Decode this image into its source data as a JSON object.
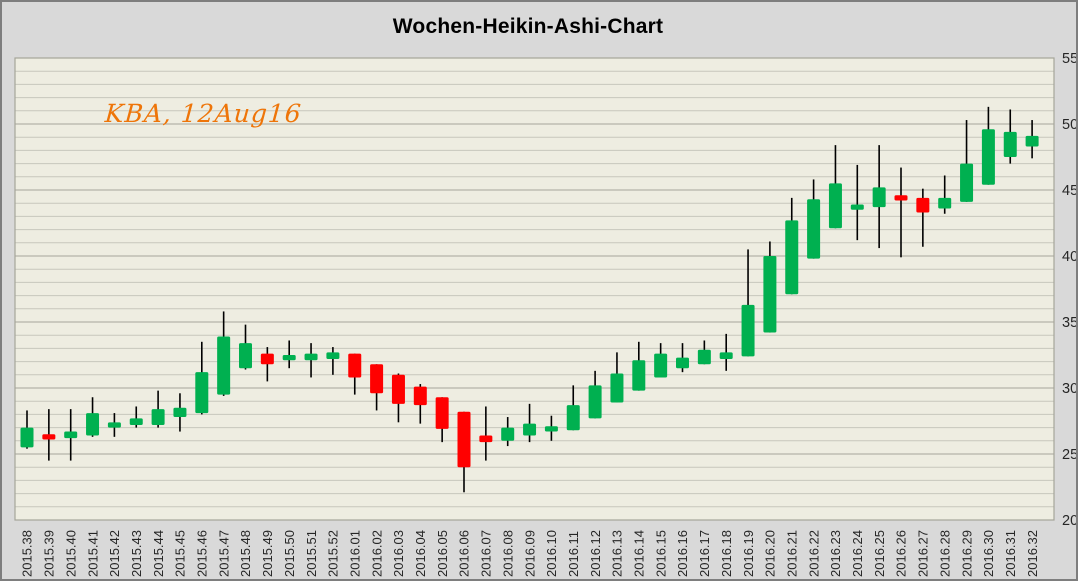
{
  "window": {
    "title": "Wochen-Heikin-Ashi-Chart"
  },
  "chart_data": {
    "type": "candlestick",
    "variant": "weekly-heikin-ashi",
    "title": "Wochen-Heikin-Ashi-Chart",
    "annotation": "KBA, 12Aug16",
    "legend": "none",
    "grid": "horizontal-only",
    "y_axis": {
      "position": "right",
      "min": 20,
      "max": 55,
      "tick_step": 5,
      "minor_grid_step": 1,
      "ticks": [
        55,
        50,
        45,
        40,
        35,
        30,
        25,
        20
      ]
    },
    "x_axis": {
      "label_rotation": -90
    },
    "colors": {
      "up": "#00b050",
      "down": "#ff0000",
      "wick": "#000000",
      "plot_bg": "#eeede1",
      "outer_bg": "#d9d9d9",
      "grid_minor": "#c7c7bc",
      "grid_major": "#a5a59a",
      "annotation": "#ee7509",
      "axis_text": "#262626",
      "title_text": "#000000"
    },
    "candles": [
      {
        "label": "2015.38",
        "open": 25.5,
        "high": 28.3,
        "low": 25.4,
        "close": 27.0
      },
      {
        "label": "2015.39",
        "open": 26.5,
        "high": 28.4,
        "low": 24.5,
        "close": 26.1
      },
      {
        "label": "2015.40",
        "open": 26.2,
        "high": 28.4,
        "low": 24.5,
        "close": 26.7
      },
      {
        "label": "2015.41",
        "open": 26.4,
        "high": 29.3,
        "low": 26.3,
        "close": 28.1
      },
      {
        "label": "2015.42",
        "open": 27.0,
        "high": 28.1,
        "low": 26.3,
        "close": 27.4
      },
      {
        "label": "2015.43",
        "open": 27.2,
        "high": 28.6,
        "low": 27.0,
        "close": 27.7
      },
      {
        "label": "2015.44",
        "open": 27.2,
        "high": 29.8,
        "low": 27.0,
        "close": 28.4
      },
      {
        "label": "2015.45",
        "open": 27.8,
        "high": 29.6,
        "low": 26.7,
        "close": 28.5
      },
      {
        "label": "2015.46",
        "open": 28.1,
        "high": 33.5,
        "low": 28.0,
        "close": 31.2
      },
      {
        "label": "2015.47",
        "open": 29.5,
        "high": 35.8,
        "low": 29.4,
        "close": 33.9
      },
      {
        "label": "2015.48",
        "open": 31.5,
        "high": 34.8,
        "low": 31.4,
        "close": 33.4
      },
      {
        "label": "2015.49",
        "open": 32.6,
        "high": 33.1,
        "low": 30.5,
        "close": 31.8
      },
      {
        "label": "2015.50",
        "open": 32.1,
        "high": 33.6,
        "low": 31.5,
        "close": 32.5
      },
      {
        "label": "2015.51",
        "open": 32.1,
        "high": 33.4,
        "low": 30.8,
        "close": 32.6
      },
      {
        "label": "2015.52",
        "open": 32.2,
        "high": 33.1,
        "low": 31.0,
        "close": 32.7
      },
      {
        "label": "2016.01",
        "open": 32.6,
        "high": 32.6,
        "low": 29.5,
        "close": 30.8
      },
      {
        "label": "2016.02",
        "open": 31.8,
        "high": 31.8,
        "low": 28.3,
        "close": 29.6
      },
      {
        "label": "2016.03",
        "open": 31.0,
        "high": 31.1,
        "low": 27.4,
        "close": 28.8
      },
      {
        "label": "2016.04",
        "open": 30.1,
        "high": 30.3,
        "low": 27.3,
        "close": 28.7
      },
      {
        "label": "2016.05",
        "open": 29.3,
        "high": 29.3,
        "low": 25.9,
        "close": 26.9
      },
      {
        "label": "2016.06",
        "open": 28.2,
        "high": 28.2,
        "low": 22.1,
        "close": 24.0
      },
      {
        "label": "2016.07",
        "open": 26.4,
        "high": 28.6,
        "low": 24.5,
        "close": 25.9
      },
      {
        "label": "2016.08",
        "open": 26.0,
        "high": 27.8,
        "low": 25.6,
        "close": 27.0
      },
      {
        "label": "2016.09",
        "open": 26.4,
        "high": 28.8,
        "low": 25.9,
        "close": 27.3
      },
      {
        "label": "2016.10",
        "open": 26.7,
        "high": 27.9,
        "low": 26.0,
        "close": 27.1
      },
      {
        "label": "2016.11",
        "open": 26.8,
        "high": 30.2,
        "low": 26.8,
        "close": 28.7
      },
      {
        "label": "2016.12",
        "open": 27.7,
        "high": 31.3,
        "low": 27.7,
        "close": 30.2
      },
      {
        "label": "2016.13",
        "open": 28.9,
        "high": 32.7,
        "low": 28.9,
        "close": 31.1
      },
      {
        "label": "2016.14",
        "open": 29.8,
        "high": 33.5,
        "low": 29.8,
        "close": 32.1
      },
      {
        "label": "2016.15",
        "open": 30.8,
        "high": 33.4,
        "low": 30.8,
        "close": 32.6
      },
      {
        "label": "2016.16",
        "open": 31.5,
        "high": 33.4,
        "low": 31.2,
        "close": 32.3
      },
      {
        "label": "2016.17",
        "open": 31.8,
        "high": 33.6,
        "low": 31.8,
        "close": 32.9
      },
      {
        "label": "2016.18",
        "open": 32.2,
        "high": 34.1,
        "low": 31.3,
        "close": 32.7
      },
      {
        "label": "2016.19",
        "open": 32.4,
        "high": 40.5,
        "low": 32.4,
        "close": 36.3
      },
      {
        "label": "2016.20",
        "open": 34.2,
        "high": 41.1,
        "low": 34.2,
        "close": 40.0
      },
      {
        "label": "2016.21",
        "open": 37.1,
        "high": 44.4,
        "low": 37.1,
        "close": 42.7
      },
      {
        "label": "2016.22",
        "open": 39.8,
        "high": 45.8,
        "low": 39.8,
        "close": 44.3
      },
      {
        "label": "2016.23",
        "open": 42.1,
        "high": 48.4,
        "low": 42.1,
        "close": 45.5
      },
      {
        "label": "2016.24",
        "open": 43.5,
        "high": 46.9,
        "low": 41.2,
        "close": 43.9
      },
      {
        "label": "2016.25",
        "open": 43.7,
        "high": 48.4,
        "low": 40.6,
        "close": 45.2
      },
      {
        "label": "2016.26",
        "open": 44.6,
        "high": 46.7,
        "low": 39.9,
        "close": 44.2
      },
      {
        "label": "2016.27",
        "open": 44.4,
        "high": 45.1,
        "low": 40.7,
        "close": 43.3
      },
      {
        "label": "2016.28",
        "open": 43.6,
        "high": 46.1,
        "low": 43.2,
        "close": 44.4
      },
      {
        "label": "2016.29",
        "open": 44.1,
        "high": 50.3,
        "low": 44.1,
        "close": 47.0
      },
      {
        "label": "2016.30",
        "open": 45.4,
        "high": 51.3,
        "low": 45.4,
        "close": 49.6
      },
      {
        "label": "2016.31",
        "open": 47.5,
        "high": 51.1,
        "low": 47.0,
        "close": 49.4
      },
      {
        "label": "2016.32",
        "open": 48.3,
        "high": 50.3,
        "low": 47.4,
        "close": 49.1
      }
    ]
  }
}
